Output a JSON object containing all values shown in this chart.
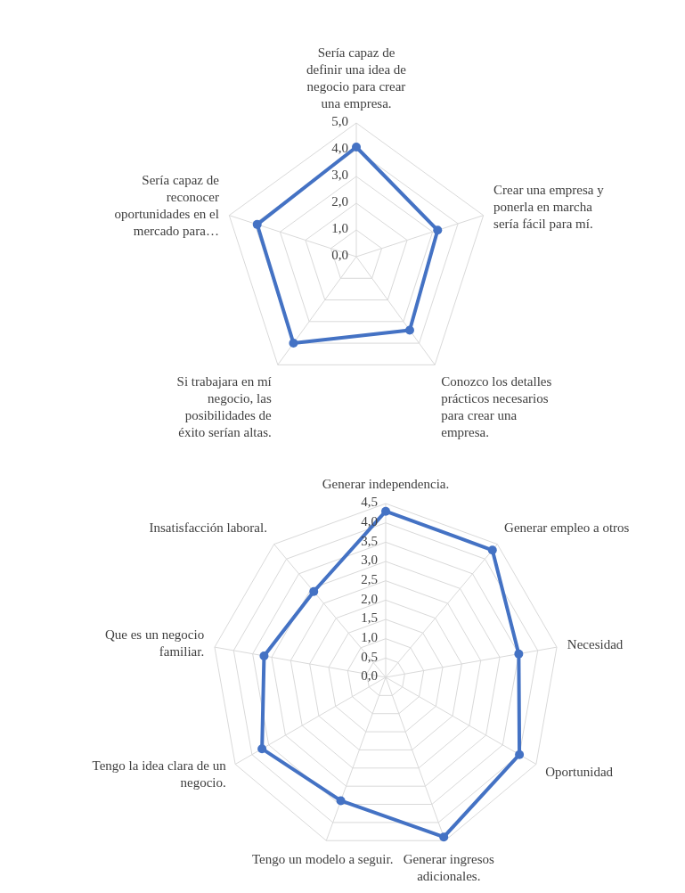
{
  "chart_data": [
    {
      "type": "radar",
      "categories": [
        "Sería capaz de definir una idea de negocio para crear una empresa.",
        "Crear una empresa y ponerla en marcha sería fácil para mí.",
        "Conozco los detalles prácticos necesarios para crear una empresa.",
        "Si trabajara en mí negocio, las posibilidades de éxito serían altas.",
        "Sería capaz de reconocer oportunidades en el mercado para…"
      ],
      "series": [
        {
          "color": "#4472c4",
          "values": [
            4.1,
            3.2,
            3.4,
            4.0,
            3.9
          ]
        }
      ],
      "ylim": [
        0,
        5
      ],
      "yticks": [
        {
          "value": 0,
          "label": "0,0"
        },
        {
          "value": 1,
          "label": "1,0"
        },
        {
          "value": 2,
          "label": "2,0"
        },
        {
          "value": 3,
          "label": "3,0"
        },
        {
          "value": 4,
          "label": "4,0"
        },
        {
          "value": 5,
          "label": "5,0"
        }
      ],
      "grid": true,
      "marker": "circle",
      "line_style": "solid"
    },
    {
      "type": "radar",
      "categories": [
        "Generar independencia.",
        "Generar empleo a otros",
        "Necesidad",
        "Oportunidad",
        "Generar ingresos adicionales.",
        "Tengo un modelo a seguir.",
        "Tengo la idea clara de un negocio.",
        "Que es un negocio familiar.",
        "Insatisfacción laboral."
      ],
      "series": [
        {
          "color": "#4472c4",
          "values": [
            4.3,
            4.3,
            3.5,
            4.0,
            4.4,
            3.4,
            3.7,
            3.2,
            2.9
          ]
        }
      ],
      "ylim": [
        0,
        4.5
      ],
      "yticks": [
        {
          "value": 0,
          "label": "0,0"
        },
        {
          "value": 0.5,
          "label": "0,5"
        },
        {
          "value": 1,
          "label": "1,0"
        },
        {
          "value": 1.5,
          "label": "1,5"
        },
        {
          "value": 2,
          "label": "2,0"
        },
        {
          "value": 2.5,
          "label": "2,5"
        },
        {
          "value": 3,
          "label": "3,0"
        },
        {
          "value": 3.5,
          "label": "3,5"
        },
        {
          "value": 4,
          "label": "4,0"
        },
        {
          "value": 4.5,
          "label": "4,5"
        }
      ],
      "grid": true,
      "marker": "circle",
      "line_style": "solid"
    }
  ]
}
